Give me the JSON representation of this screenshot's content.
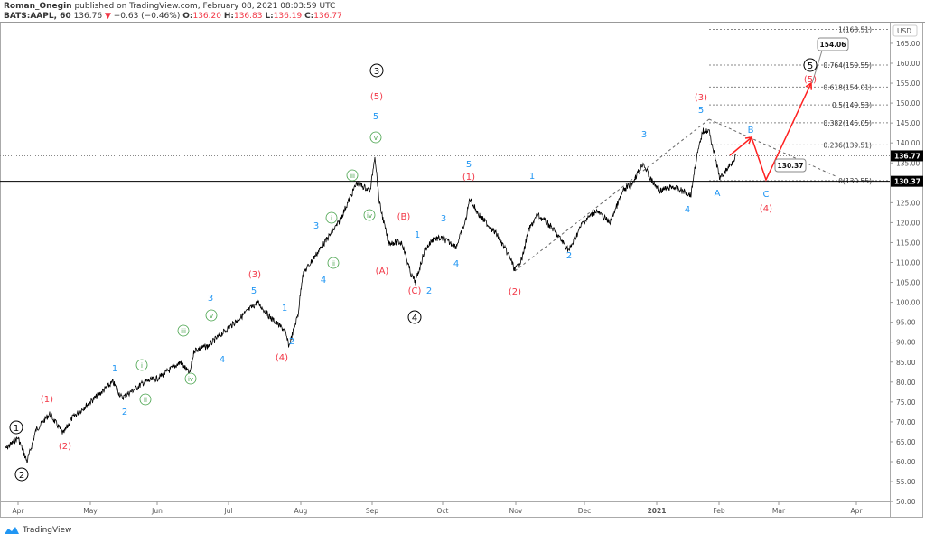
{
  "header": {
    "author": "Roman_Onegin",
    "published": "published on TradingView.com, February 08, 2021 08:03:59 UTC",
    "symbol": "BATS:AAPL, 60",
    "last": "136.76",
    "change": "−0.63 (−0.46%)",
    "o_label": "O:",
    "o": "136.20",
    "h_label": "H:",
    "h": "136.83",
    "l_label": "L:",
    "l": "136.19",
    "c_label": "C:",
    "c": "136.77"
  },
  "footer": {
    "brand": "TradingView",
    "icon": "tradingview-logo-icon"
  },
  "colors": {
    "price": "#000000",
    "wave_red": "#f23645",
    "wave_blue": "#2196f3",
    "wave_green": "#43a047",
    "arrow": "#ff2020"
  },
  "chart_data": {
    "type": "line",
    "currency": "USD",
    "ylim": [
      50,
      170
    ],
    "y_ticks": [
      "50.00",
      "55.00",
      "60.00",
      "65.00",
      "70.00",
      "75.00",
      "80.00",
      "85.00",
      "90.00",
      "95.00",
      "100.00",
      "105.00",
      "110.00",
      "115.00",
      "120.00",
      "125.00",
      "135.00",
      "140.00",
      "145.00",
      "150.00",
      "155.00",
      "160.00",
      "165.00"
    ],
    "x_ticks": [
      "Apr",
      "May",
      "Jun",
      "Jul",
      "Aug",
      "Sep",
      "Oct",
      "Nov",
      "Dec",
      "2021",
      "Feb",
      "Mar",
      "Apr"
    ],
    "price_badges": {
      "current": "136.77",
      "level": "130.37"
    },
    "fib_levels": [
      {
        "label": "1(168.51)",
        "price": 168.51
      },
      {
        "label": "0.764(159.55)",
        "price": 159.55
      },
      {
        "label": "0.618(154.01)",
        "price": 154.01
      },
      {
        "label": "0.5(149.53)",
        "price": 149.53
      },
      {
        "label": "0.382(145.05)",
        "price": 145.05
      },
      {
        "label": "0.236(139.51)",
        "price": 139.51
      },
      {
        "label": "0(130.55)",
        "price": 130.55
      }
    ],
    "callouts": [
      "130.37",
      "154.06"
    ],
    "series_key_points": [
      [
        "Apr 1",
        63
      ],
      [
        "Apr 10",
        60
      ],
      [
        "Apr 25",
        72
      ],
      [
        "May 10",
        75
      ],
      [
        "May 20",
        80
      ],
      [
        "Jun 20",
        85
      ],
      [
        "Jul 10",
        100
      ],
      [
        "Jul 24",
        89
      ],
      [
        "Aug 5",
        110
      ],
      [
        "Sep 1",
        137
      ],
      [
        "Sep 8",
        115
      ],
      [
        "Sep 21",
        105
      ],
      [
        "Oct 12",
        126
      ],
      [
        "Oct 30",
        108
      ],
      [
        "Dec 29",
        138
      ],
      [
        "Jan 6",
        127
      ],
      [
        "Jan 26",
        145
      ],
      [
        "Jan 29",
        131
      ],
      [
        "Feb 8",
        136.77
      ]
    ],
    "wave_labels": {
      "black": [
        "1",
        "2",
        "3",
        "4",
        "5"
      ],
      "red": [
        "(1)",
        "(2)",
        "(3)",
        "(4)",
        "(5)",
        "(A)",
        "(B)",
        "(C)",
        "(1)",
        "(2)",
        "(3)",
        "(4)",
        "(5)"
      ],
      "blue": [
        "1",
        "2",
        "3",
        "4",
        "5",
        "1",
        "2",
        "3",
        "4",
        "5",
        "1",
        "2",
        "3",
        "4",
        "5",
        "1",
        "2",
        "3",
        "4",
        "5",
        "A",
        "B",
        "C"
      ],
      "green": [
        "i",
        "ii",
        "iii",
        "iv",
        "v",
        "i",
        "ii",
        "iii",
        "iv",
        "v"
      ]
    }
  }
}
